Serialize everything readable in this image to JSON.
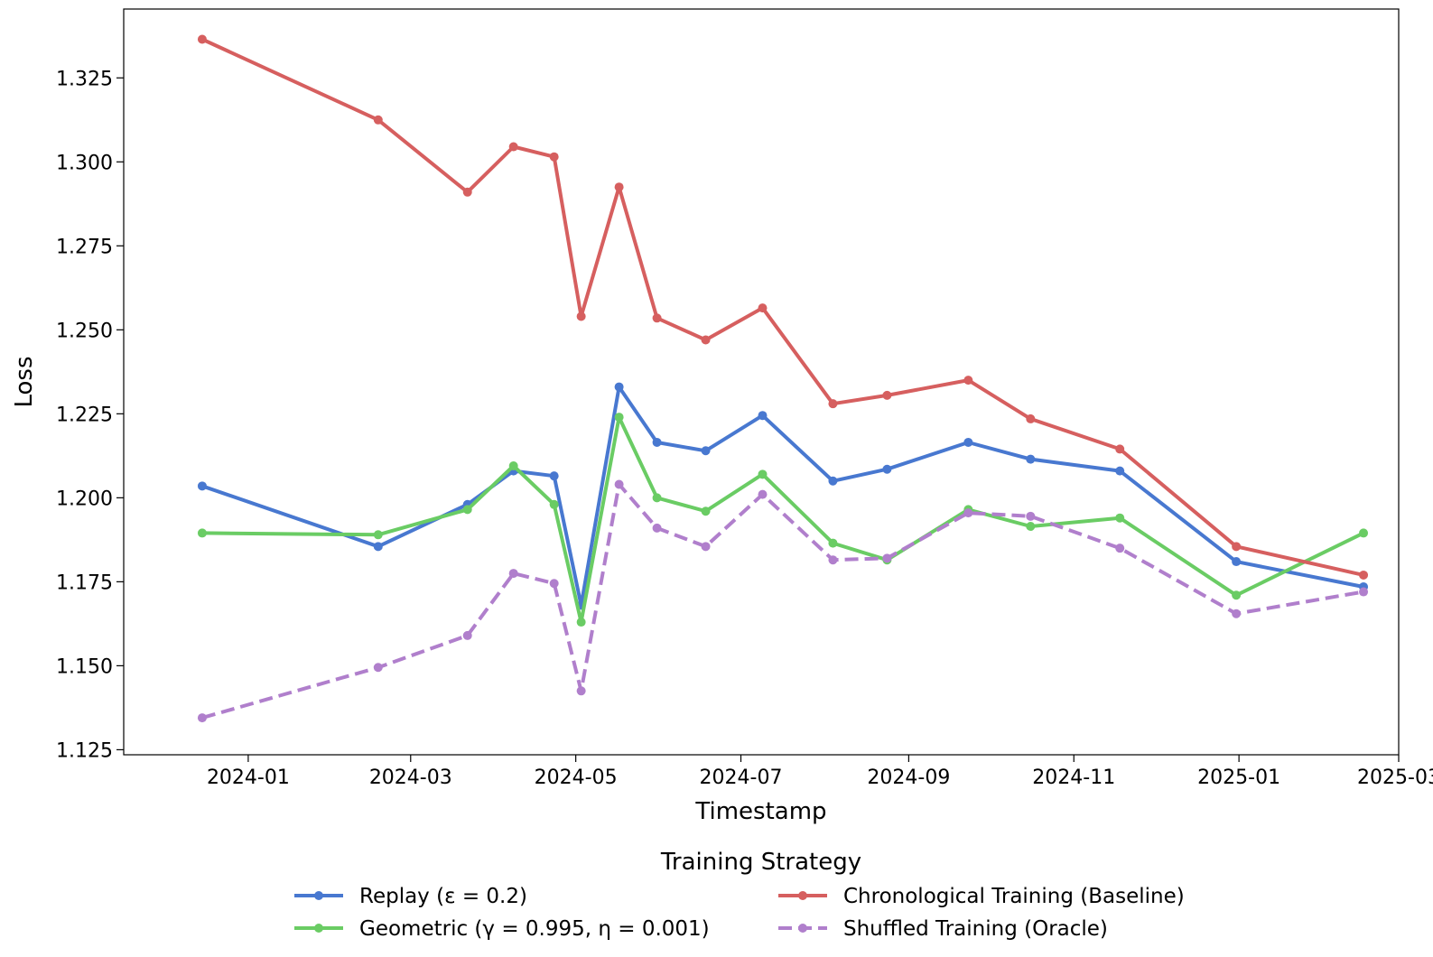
{
  "chart_data": {
    "type": "line",
    "xlabel": "Timestamp",
    "ylabel": "Loss",
    "x_tick_labels": [
      "2024-01",
      "2024-03",
      "2024-05",
      "2024-07",
      "2024-09",
      "2024-11",
      "2025-01",
      "2025-03"
    ],
    "y_tick_labels": [
      "1.125",
      "1.150",
      "1.175",
      "1.200",
      "1.225",
      "1.250",
      "1.275",
      "1.300",
      "1.325"
    ],
    "xlim": [
      "2023-11-16",
      "2025-03-01"
    ],
    "ylim": [
      1.1235,
      1.3455
    ],
    "grid": false,
    "legend": {
      "title": "Training Strategy",
      "placement": "bottom-center",
      "columns": 2
    },
    "x": [
      "2023-12-15",
      "2024-02-18",
      "2024-03-22",
      "2024-04-08",
      "2024-04-23",
      "2024-05-03",
      "2024-05-17",
      "2024-05-31",
      "2024-06-18",
      "2024-07-09",
      "2024-08-04",
      "2024-08-24",
      "2024-09-23",
      "2024-10-16",
      "2024-11-18",
      "2024-12-31",
      "2025-02-16"
    ],
    "series": [
      {
        "name": "Replay (ε = 0.2)",
        "color": "#4878d0",
        "dashed": false,
        "values": [
          1.2035,
          1.1855,
          1.198,
          1.208,
          1.2065,
          1.168,
          1.233,
          1.2165,
          1.214,
          1.2245,
          1.205,
          1.2085,
          1.2165,
          1.2115,
          1.208,
          1.181,
          1.1735
        ]
      },
      {
        "name": "Geometric (γ = 0.995, η = 0.001)",
        "color": "#6acc64",
        "dashed": false,
        "values": [
          1.1895,
          1.189,
          1.1965,
          1.2095,
          1.198,
          1.163,
          1.224,
          1.2,
          1.196,
          1.207,
          1.1865,
          1.1815,
          1.1965,
          1.1915,
          1.194,
          1.171,
          1.1895
        ]
      },
      {
        "name": "Chronological Training (Baseline)",
        "color": "#d65f5f",
        "dashed": false,
        "values": [
          1.3365,
          1.3125,
          1.291,
          1.3045,
          1.3015,
          1.254,
          1.2925,
          1.2535,
          1.247,
          1.2565,
          1.228,
          1.2305,
          1.235,
          1.2235,
          1.2145,
          1.1855,
          1.177
        ]
      },
      {
        "name": "Shuffled Training (Oracle)",
        "color": "#b07fcc",
        "dashed": true,
        "values": [
          1.1345,
          1.1495,
          1.159,
          1.1775,
          1.1745,
          1.1425,
          1.204,
          1.191,
          1.1855,
          1.201,
          1.1815,
          1.182,
          1.1955,
          1.1945,
          1.185,
          1.1655,
          1.172
        ]
      }
    ]
  }
}
